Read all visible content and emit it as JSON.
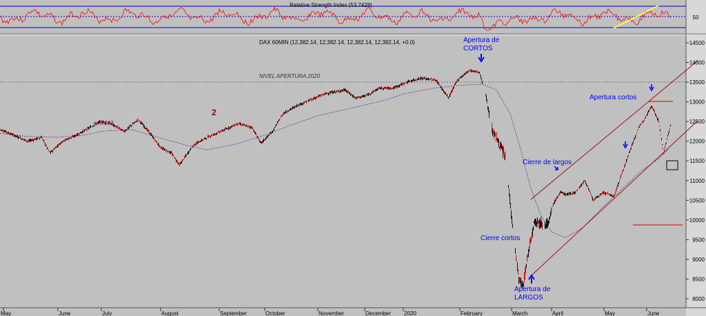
{
  "colors": {
    "background": "#c0c0c0",
    "rsi_line": "#ff0000",
    "rsi_level": "#0000cc",
    "candle_up": "#000000",
    "candle_down": "#cc0000",
    "ma_line": "#5a2d8c",
    "channel": "#990000",
    "annotation": "#0000ff",
    "trend": "#ffff33"
  },
  "rsi_panel": {
    "title": "Relative Strength Index (53.7428)",
    "level_label": "50"
  },
  "price_panel": {
    "header": "DAX 60MIN (12,382.14, 12,382.14, 12,382.14, 12,382.14, +0.0)",
    "ma_label": "mm 233",
    "level_label": "NIVEL APERTURA 2020",
    "wave_label": "2"
  },
  "annotations": {
    "apertura_cortos_top_line1": "Apertura de",
    "apertura_cortos_top_line2": "CORTOS",
    "apertura_cortos_right": "Apertura cortos",
    "cierre_largos": "Cierre de largos",
    "cierre_cortos": "Cierre cortos",
    "apertura_largos_line1": "Apertura de",
    "apertura_largos_line2": "LARGOS"
  },
  "chart_data": {
    "type": "line",
    "title": "DAX 60MIN (12,382.14, 12,382.14, 12,382.14, 12,382.14, +0.0)",
    "xlabel": "",
    "ylabel": "",
    "ylim": [
      7850,
      14600
    ],
    "y_ticks": [
      8000,
      8500,
      9000,
      9500,
      10000,
      10500,
      11000,
      11500,
      12000,
      12500,
      13000,
      13500,
      14000,
      14500
    ],
    "x_ticks": [
      "May",
      "June",
      "July",
      "August",
      "September",
      "October",
      "November",
      "December",
      "2020",
      "February",
      "March",
      "April",
      "May",
      "June"
    ],
    "reference_level": 13250,
    "reference_label": "NIVEL APERTURA 2020",
    "series": [
      {
        "x": [
          "May",
          "June",
          "July",
          "August",
          "September",
          "October",
          "November",
          "December",
          "2020",
          "February",
          "March",
          "April",
          "May",
          "June"
        ],
        "values": [
          12150,
          11950,
          12400,
          11700,
          12100,
          12150,
          13150,
          13200,
          13400,
          13750,
          9500,
          10300,
          11000,
          12350
        ]
      },
      {
        "name": "mm 233",
        "x": [
          "May",
          "June",
          "July",
          "August",
          "September",
          "October",
          "November",
          "December",
          "2020",
          "February",
          "March",
          "April",
          "May",
          "June"
        ],
        "values": [
          12200,
          12100,
          12200,
          12050,
          11850,
          12100,
          12600,
          12900,
          13200,
          13450,
          11000,
          9700,
          10600,
          11400
        ]
      }
    ],
    "rsi": {
      "title": "Relative Strength Index (53.7428)",
      "value": 53.7428,
      "levels": [
        30,
        50,
        70
      ]
    }
  }
}
